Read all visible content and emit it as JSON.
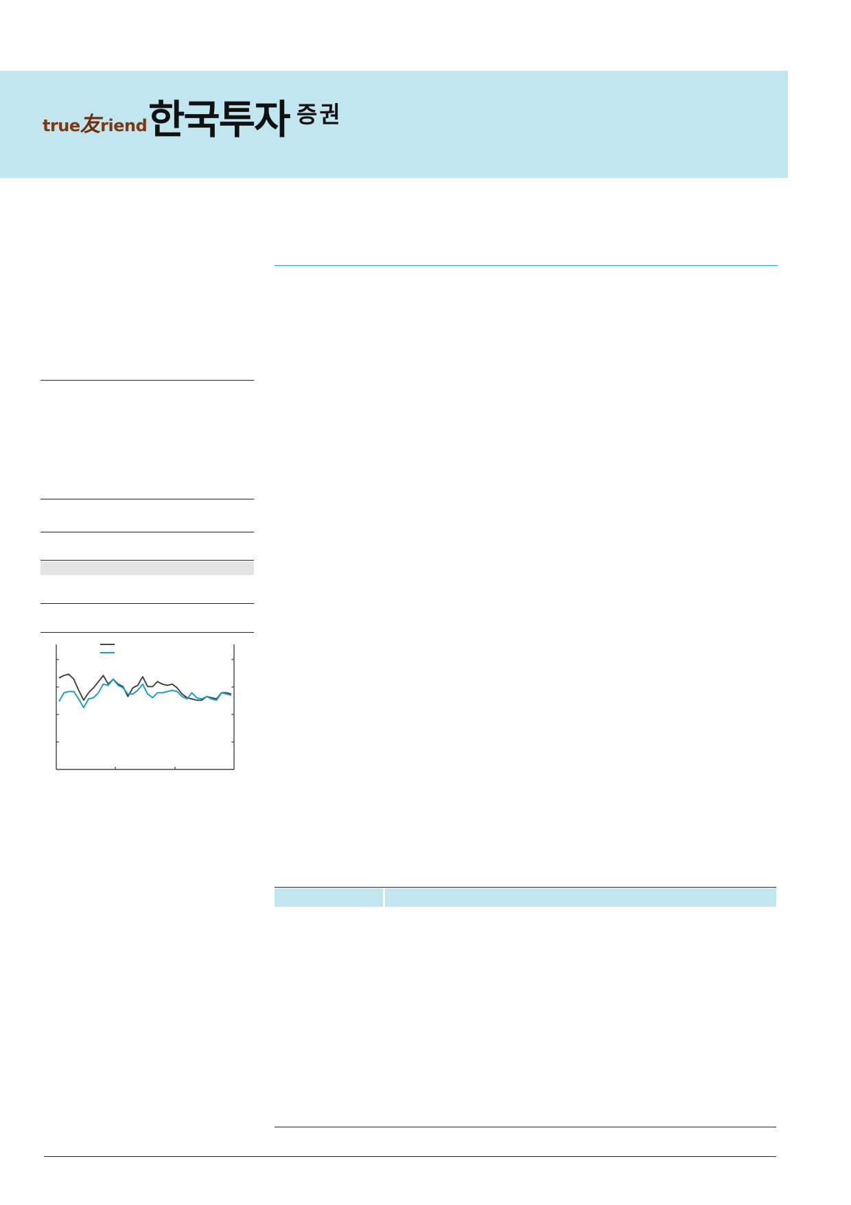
{
  "brand": {
    "logo_latin_pre": "true",
    "logo_latin_mark": "友",
    "logo_latin_post": "riend",
    "logo_main": "한국투자",
    "logo_sub": "증권",
    "band_color": "#c1e6f0",
    "accent_color": "#2aa3c9",
    "logo_color": "#7a3a12"
  },
  "chart_data": {
    "type": "line",
    "title": "",
    "xlabel": "",
    "ylabel": "",
    "x": [
      0,
      1,
      2,
      3,
      4,
      5,
      6,
      7,
      8,
      9,
      10,
      11,
      12,
      13,
      14,
      15,
      16,
      17,
      18,
      19,
      20,
      21,
      22,
      23,
      24,
      25,
      26,
      27,
      28,
      29,
      30,
      31,
      32,
      33,
      34,
      35
    ],
    "ylim": [
      0,
      100
    ],
    "series": [
      {
        "color": "#444444",
        "values": [
          74,
          76,
          77,
          73,
          64,
          56,
          62,
          66,
          71,
          76,
          69,
          73,
          69,
          67,
          59,
          66,
          68,
          75,
          67,
          67,
          71,
          69,
          68,
          69,
          66,
          61,
          58,
          57,
          56,
          56,
          59,
          58,
          57,
          62,
          62,
          61
        ]
      },
      {
        "color": "#1a9fc4",
        "values": [
          55,
          62,
          63,
          63,
          57,
          50,
          57,
          58,
          62,
          69,
          68,
          73,
          68,
          66,
          61,
          61,
          64,
          69,
          61,
          58,
          62,
          62,
          63,
          64,
          63,
          59,
          57,
          62,
          58,
          57,
          59,
          57,
          56,
          62,
          61,
          60
        ]
      }
    ],
    "legend": "top-left",
    "grid": false
  }
}
